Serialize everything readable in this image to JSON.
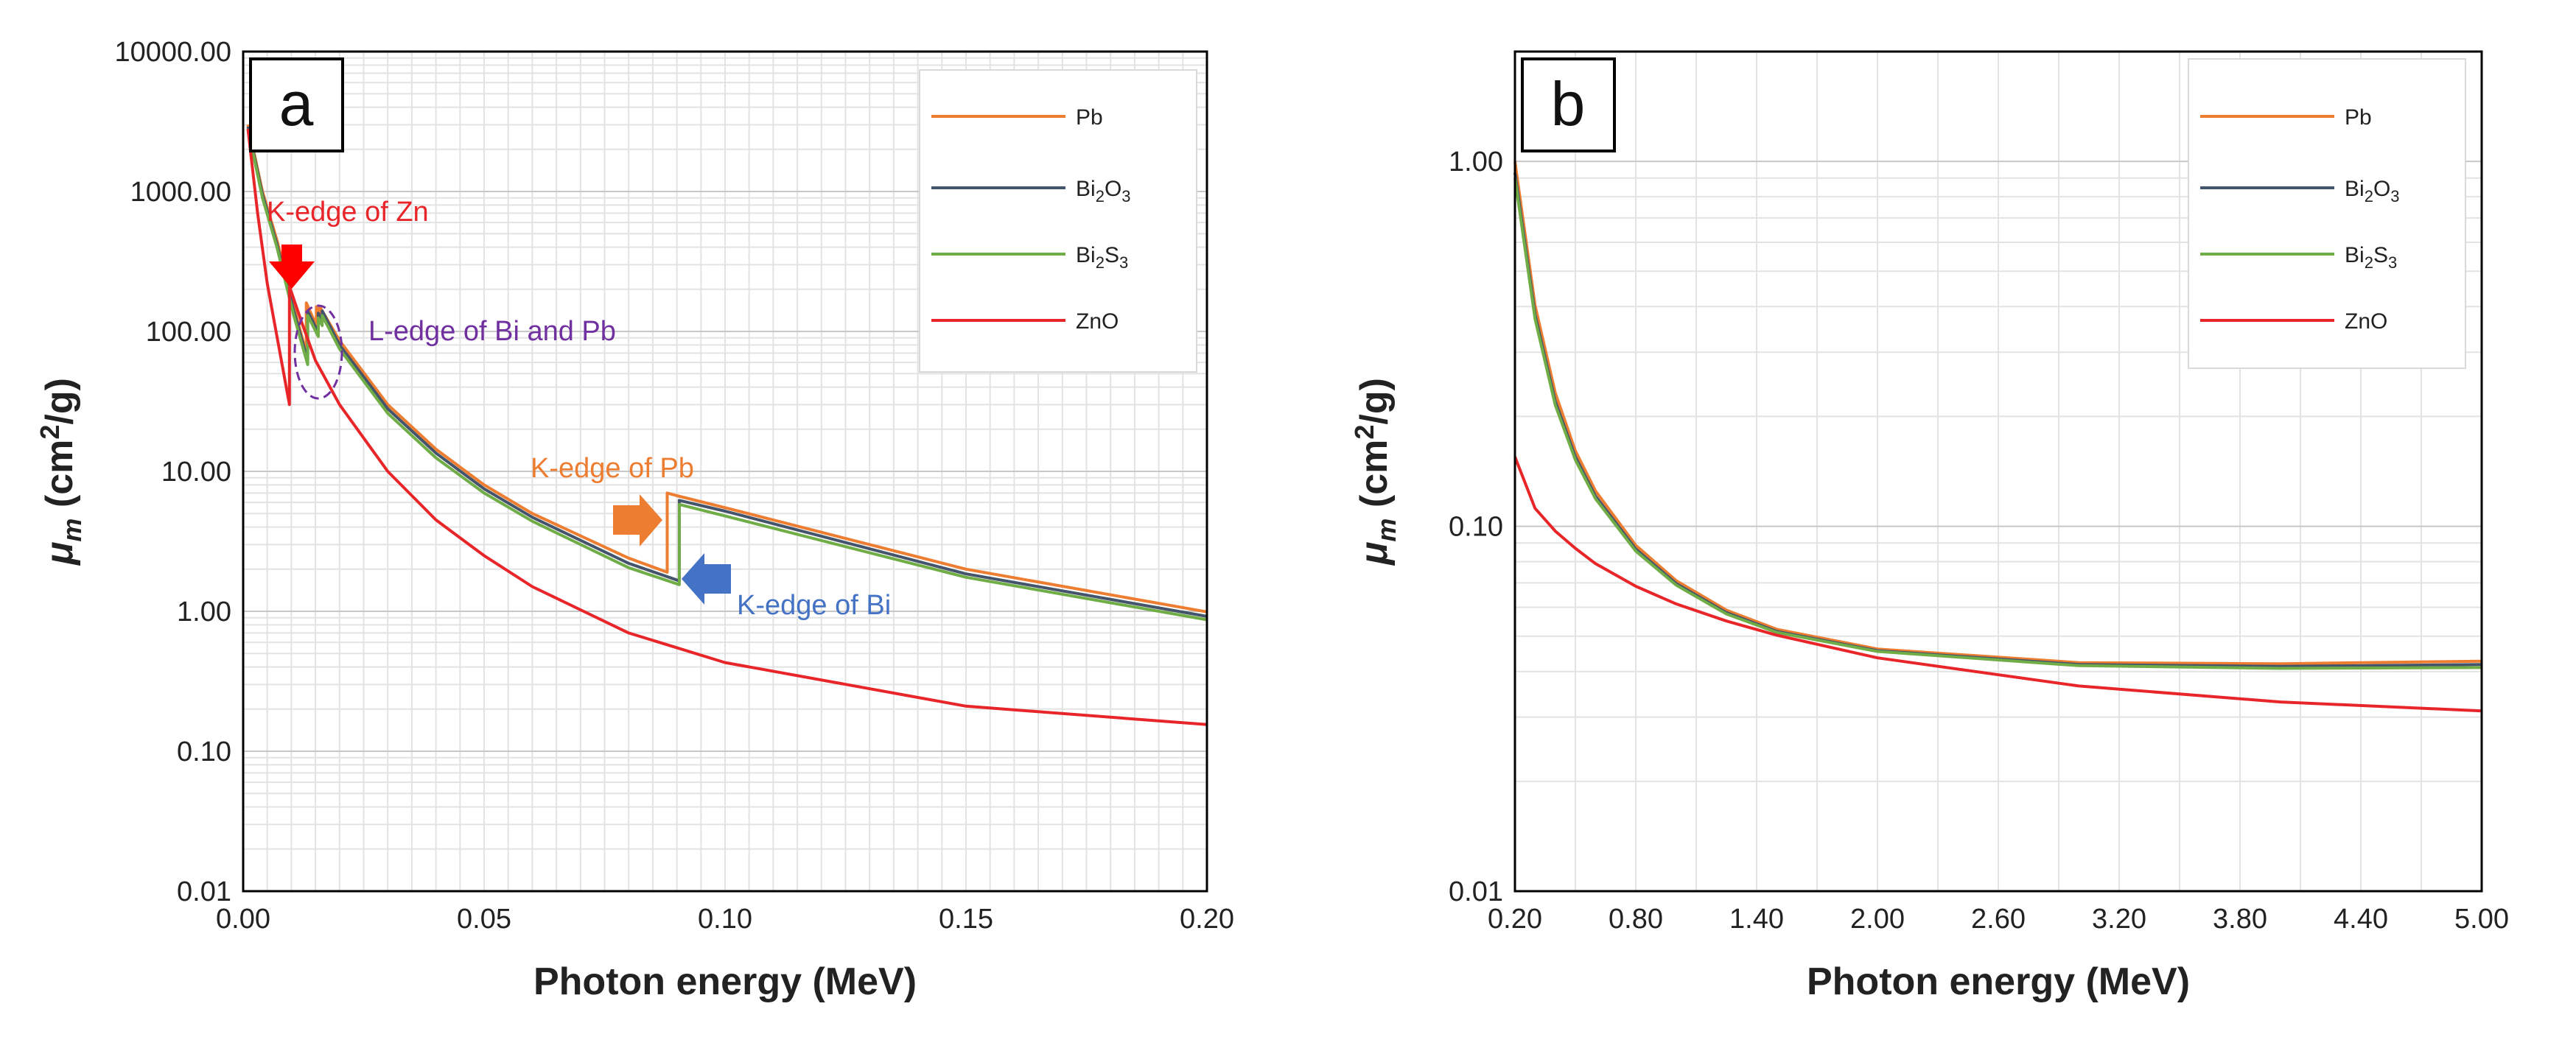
{
  "chart_data": [
    {
      "type": "line",
      "panel_label": "a",
      "xlabel": "Photon energy (MeV)",
      "ylabel_parts": [
        "μ",
        "m",
        " (cm",
        "2",
        "/g)"
      ],
      "xlim": [
        0,
        0.2
      ],
      "ylim": [
        0.01,
        10000
      ],
      "yscale": "log",
      "xticks": [
        0,
        0.05,
        0.1,
        0.15,
        0.2
      ],
      "xtick_labels": [
        "0.00",
        "0.05",
        "0.10",
        "0.15",
        "0.20"
      ],
      "yticks": [
        0.01,
        0.1,
        1,
        10,
        100,
        1000,
        10000
      ],
      "ytick_labels": [
        "0.01",
        "0.10",
        "1.00",
        "10.00",
        "100.00",
        "1000.00",
        "10000.00"
      ],
      "legend_position": "top-right",
      "series": [
        {
          "name": "Pb",
          "label_parts": [
            "Pb"
          ],
          "color": "#ed7d31",
          "x": [
            0.001,
            0.004,
            0.007,
            0.0105,
            0.0131,
            0.0131,
            0.0152,
            0.0152,
            0.0159,
            0.0159,
            0.02,
            0.03,
            0.04,
            0.05,
            0.06,
            0.08,
            0.088,
            0.088,
            0.09,
            0.1,
            0.15,
            0.2
          ],
          "y": [
            3000,
            1000,
            450,
            150,
            70,
            160,
            110,
            150,
            130,
            150,
            86,
            30,
            14.4,
            8.0,
            5.0,
            2.4,
            1.9,
            7.0,
            6.7,
            5.5,
            2.0,
            0.99
          ]
        },
        {
          "name": "Bi2O3",
          "label_parts": [
            "Bi",
            "2",
            "O",
            "3"
          ],
          "color": "#44546a",
          "x": [
            0.001,
            0.004,
            0.007,
            0.0105,
            0.0134,
            0.0134,
            0.0156,
            0.0156,
            0.0164,
            0.0164,
            0.02,
            0.03,
            0.04,
            0.05,
            0.06,
            0.08,
            0.0905,
            0.0905,
            0.1,
            0.15,
            0.2
          ],
          "y": [
            2900,
            950,
            420,
            140,
            62,
            140,
            98,
            135,
            118,
            140,
            80,
            28,
            13.5,
            7.5,
            4.7,
            2.2,
            1.65,
            6.2,
            5.2,
            1.85,
            0.92
          ]
        },
        {
          "name": "Bi2S3",
          "label_parts": [
            "Bi",
            "2",
            "S",
            "3"
          ],
          "color": "#70ad47",
          "x": [
            0.001,
            0.004,
            0.007,
            0.0105,
            0.0134,
            0.0134,
            0.0156,
            0.0156,
            0.0164,
            0.0164,
            0.02,
            0.03,
            0.04,
            0.05,
            0.06,
            0.08,
            0.0905,
            0.0905,
            0.1,
            0.15,
            0.2
          ],
          "y": [
            2800,
            900,
            400,
            130,
            58,
            130,
            92,
            125,
            110,
            130,
            75,
            26,
            12.5,
            7.0,
            4.4,
            2.05,
            1.55,
            5.8,
            4.8,
            1.75,
            0.87
          ]
        },
        {
          "name": "ZnO",
          "label_parts": [
            "ZnO"
          ],
          "color": "#e8262a",
          "x": [
            0.001,
            0.003,
            0.005,
            0.0096,
            0.0096,
            0.012,
            0.015,
            0.02,
            0.03,
            0.04,
            0.05,
            0.06,
            0.08,
            0.1,
            0.15,
            0.2
          ],
          "y": [
            2800,
            700,
            220,
            30,
            210,
            120,
            62,
            30,
            10,
            4.5,
            2.5,
            1.5,
            0.7,
            0.43,
            0.21,
            0.155
          ]
        }
      ],
      "annotations": [
        {
          "text": "K-edge of Zn",
          "color": "#e8262a"
        },
        {
          "text": "L-edge of Bi and Pb",
          "color": "#7030a0"
        },
        {
          "text": "K-edge of Pb",
          "color": "#ed7d31"
        },
        {
          "text": "K-edge of Bi",
          "color": "#4472c4"
        }
      ]
    },
    {
      "type": "line",
      "panel_label": "b",
      "xlabel": "Photon energy (MeV)",
      "ylabel_parts": [
        "μ",
        "m",
        " (cm",
        "2",
        "/g)"
      ],
      "xlim": [
        0.2,
        5.0
      ],
      "ylim": [
        0.01,
        2.0
      ],
      "yscale": "log",
      "xticks": [
        0.2,
        0.8,
        1.4,
        2.0,
        2.6,
        3.2,
        3.8,
        4.4,
        5.0
      ],
      "xtick_labels": [
        "0.20",
        "0.80",
        "1.40",
        "2.00",
        "2.60",
        "3.20",
        "3.80",
        "4.40",
        "5.00"
      ],
      "yticks": [
        0.01,
        0.1,
        1
      ],
      "ytick_labels": [
        "0.01",
        "0.10",
        "1.00"
      ],
      "legend_position": "top-right",
      "series": [
        {
          "name": "Pb",
          "label_parts": [
            "Pb"
          ],
          "color": "#ed7d31",
          "x": [
            0.2,
            0.3,
            0.4,
            0.5,
            0.6,
            0.8,
            1.0,
            1.25,
            1.5,
            2.0,
            3.0,
            4.0,
            5.0
          ],
          "y": [
            0.999,
            0.403,
            0.232,
            0.161,
            0.125,
            0.0887,
            0.071,
            0.0589,
            0.0522,
            0.0461,
            0.0423,
            0.042,
            0.0427
          ]
        },
        {
          "name": "Bi2O3",
          "label_parts": [
            "Bi",
            "2",
            "O",
            "3"
          ],
          "color": "#44546a",
          "x": [
            0.2,
            0.3,
            0.4,
            0.5,
            0.6,
            0.8,
            1.0,
            1.25,
            1.5,
            2.0,
            3.0,
            4.0,
            5.0
          ],
          "y": [
            0.93,
            0.38,
            0.22,
            0.155,
            0.121,
            0.0866,
            0.0697,
            0.058,
            0.0515,
            0.0456,
            0.0418,
            0.0413,
            0.0418
          ]
        },
        {
          "name": "Bi2S3",
          "label_parts": [
            "Bi",
            "2",
            "S",
            "3"
          ],
          "color": "#70ad47",
          "x": [
            0.2,
            0.3,
            0.4,
            0.5,
            0.6,
            0.8,
            1.0,
            1.25,
            1.5,
            2.0,
            3.0,
            4.0,
            5.0
          ],
          "y": [
            0.9,
            0.37,
            0.215,
            0.152,
            0.119,
            0.0855,
            0.069,
            0.0575,
            0.0512,
            0.0454,
            0.0415,
            0.0408,
            0.041
          ]
        },
        {
          "name": "ZnO",
          "label_parts": [
            "ZnO"
          ],
          "color": "#e8262a",
          "x": [
            0.2,
            0.3,
            0.4,
            0.5,
            0.6,
            0.8,
            1.0,
            1.25,
            1.5,
            2.0,
            3.0,
            4.0,
            5.0
          ],
          "y": [
            0.155,
            0.112,
            0.097,
            0.087,
            0.079,
            0.0685,
            0.0613,
            0.055,
            0.0503,
            0.0436,
            0.0365,
            0.033,
            0.0312
          ]
        }
      ]
    }
  ]
}
